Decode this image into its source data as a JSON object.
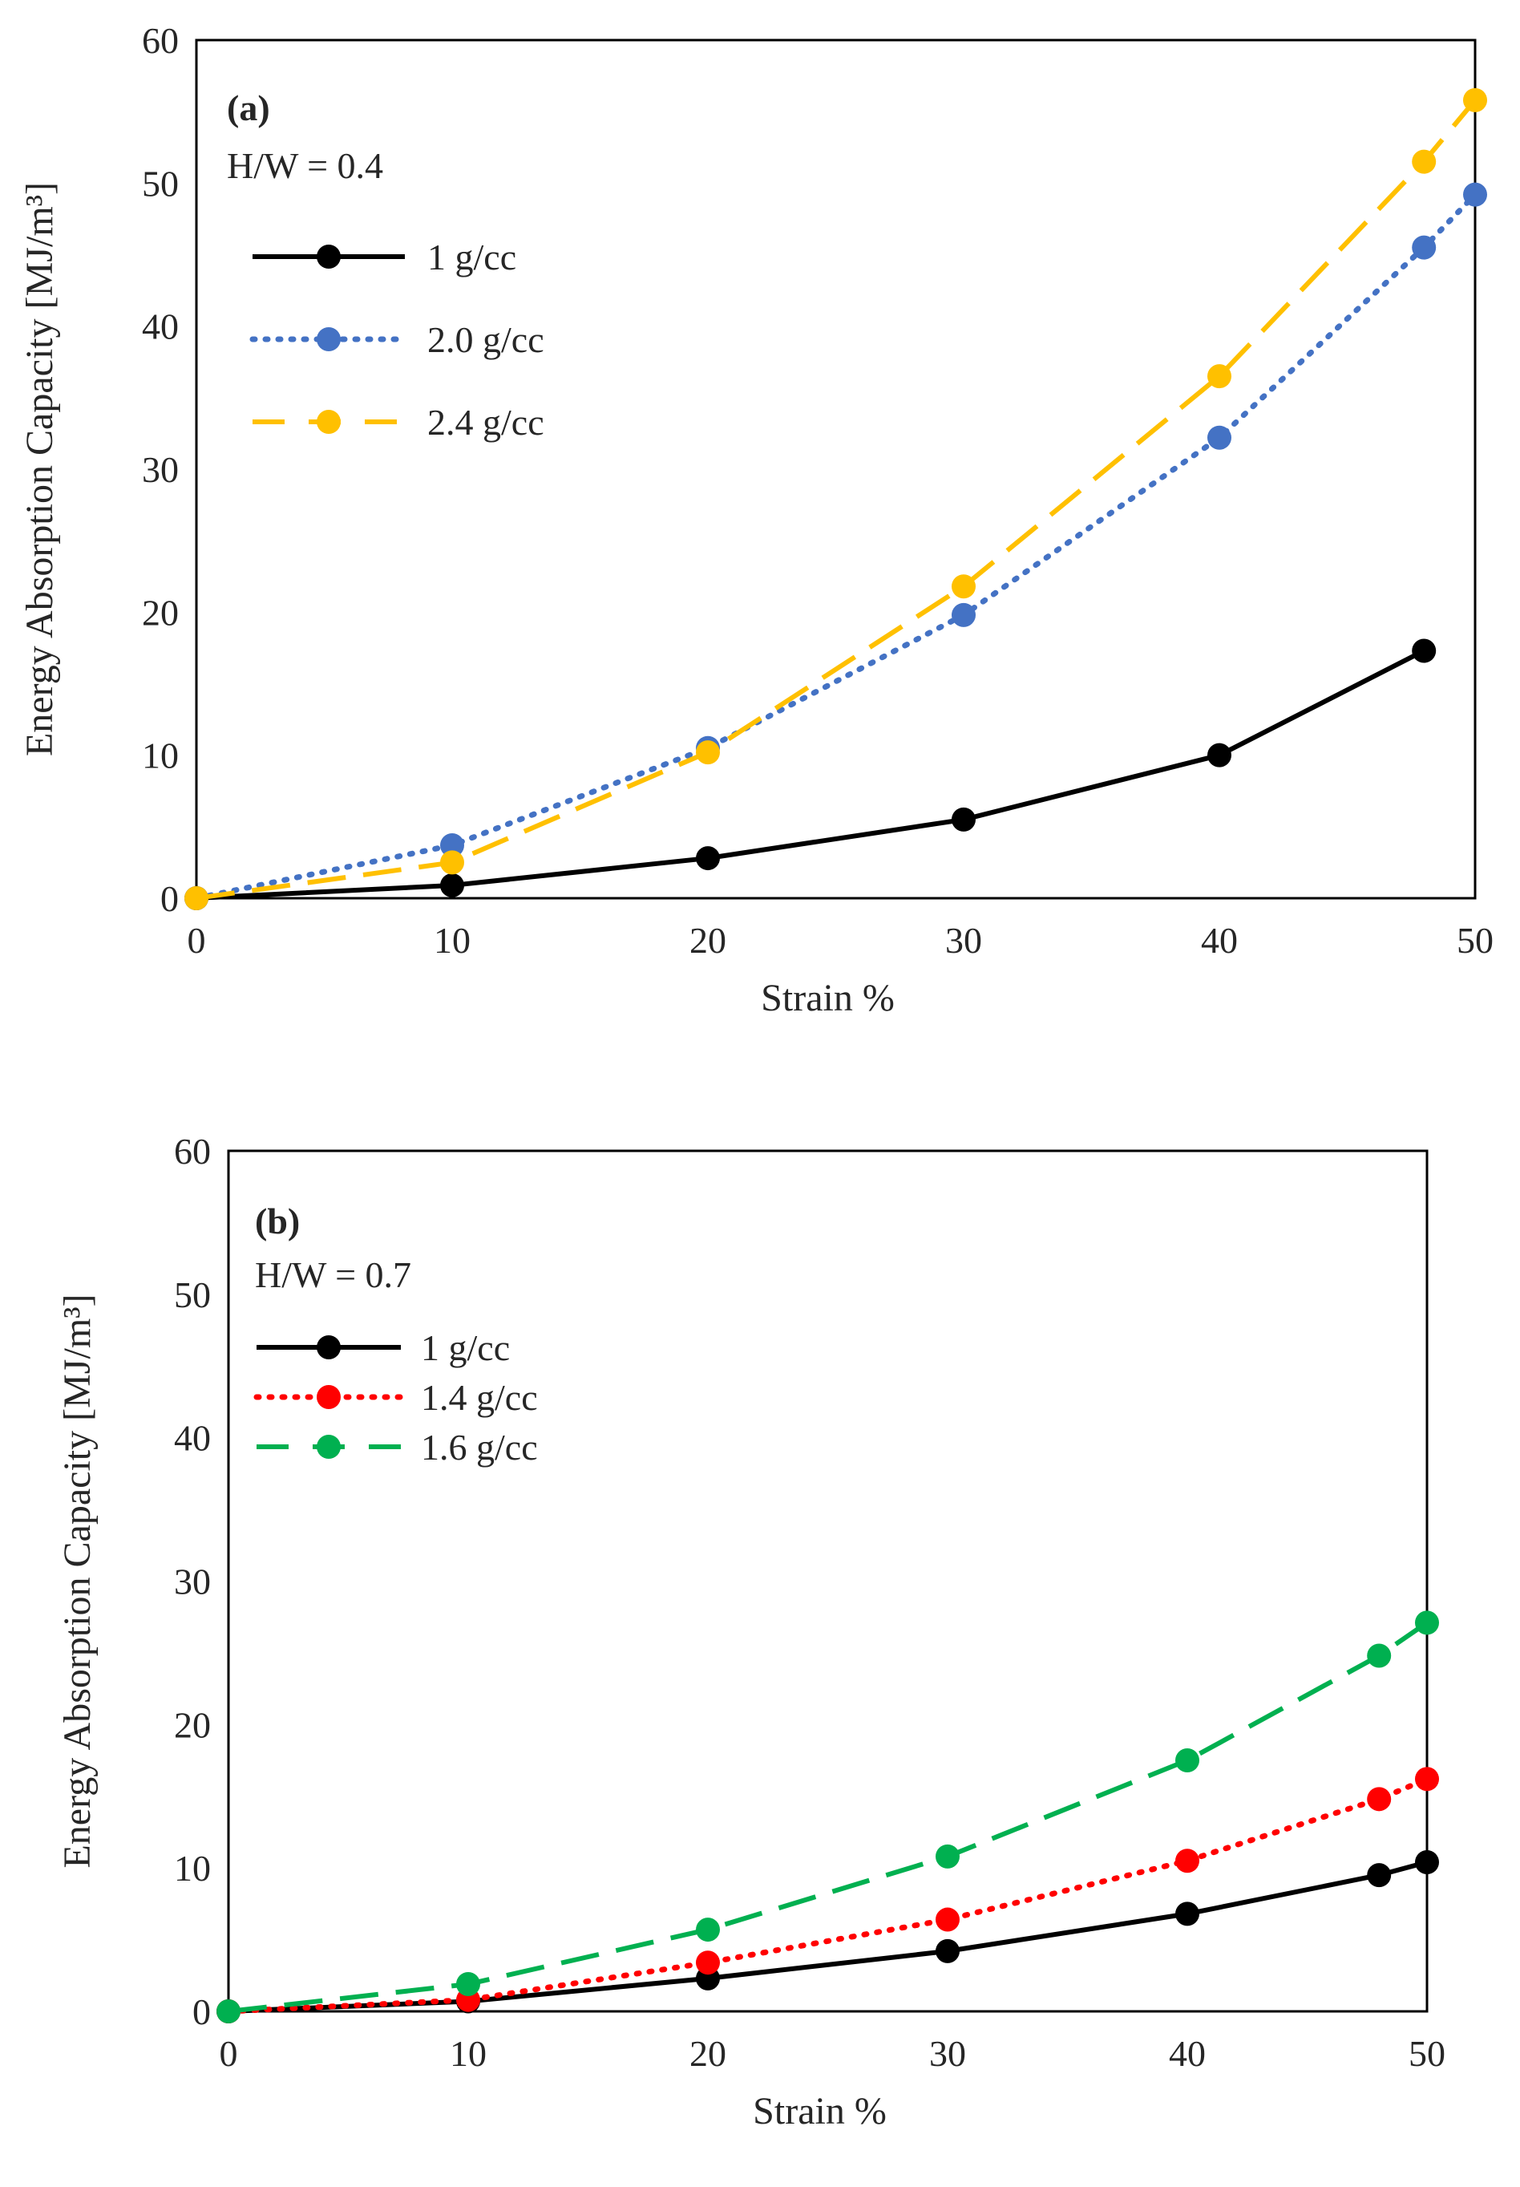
{
  "chart_data": [
    {
      "type": "line",
      "panel_label": "(a)",
      "subtitle": "H/W = 0.4",
      "xlabel": "Strain %",
      "ylabel": "Energy Absorption Capacity [MJ/m³]",
      "xlim": [
        0,
        50
      ],
      "ylim": [
        0,
        60
      ],
      "xticks": [
        0,
        10,
        20,
        30,
        40,
        50
      ],
      "yticks": [
        0,
        10,
        20,
        30,
        40,
        50,
        60
      ],
      "grid": false,
      "legend_position": "top-left",
      "series": [
        {
          "name": "1 g/cc",
          "color": "#000000",
          "style": "solid",
          "x": [
            0,
            10,
            20,
            30,
            40,
            48
          ],
          "values": [
            0,
            0.9,
            2.8,
            5.5,
            10,
            17.3
          ]
        },
        {
          "name": "2.0 g/cc",
          "color": "#4472C4",
          "style": "dotted",
          "x": [
            0,
            10,
            20,
            30,
            40,
            48,
            50
          ],
          "values": [
            0,
            3.7,
            10.5,
            19.8,
            32.2,
            45.5,
            49.2
          ]
        },
        {
          "name": "2.4 g/cc",
          "color": "#FFC000",
          "style": "dashed",
          "x": [
            0,
            10,
            20,
            30,
            40,
            48,
            50
          ],
          "values": [
            0,
            2.5,
            10.2,
            21.8,
            36.5,
            51.5,
            55.8
          ]
        }
      ]
    },
    {
      "type": "line",
      "panel_label": "(b)",
      "subtitle": "H/W = 0.7",
      "xlabel": "Strain %",
      "ylabel": "Energy Absorption Capacity [MJ/m³]",
      "xlim": [
        0,
        50
      ],
      "ylim": [
        0,
        60
      ],
      "xticks": [
        0,
        10,
        20,
        30,
        40,
        50
      ],
      "yticks": [
        0,
        10,
        20,
        30,
        40,
        50,
        60
      ],
      "grid": false,
      "legend_position": "top-left",
      "series": [
        {
          "name": "1 g/cc",
          "color": "#000000",
          "style": "solid",
          "x": [
            0,
            10,
            20,
            30,
            40,
            48,
            50
          ],
          "values": [
            0,
            0.7,
            2.3,
            4.2,
            6.8,
            9.5,
            10.4
          ]
        },
        {
          "name": "1.4 g/cc",
          "color": "#FF0000",
          "style": "dotted",
          "x": [
            0,
            10,
            20,
            30,
            40,
            48,
            50
          ],
          "values": [
            0,
            0.8,
            3.4,
            6.4,
            10.5,
            14.8,
            16.2
          ]
        },
        {
          "name": "1.6 g/cc",
          "color": "#00B050",
          "style": "dashed",
          "x": [
            0,
            10,
            20,
            30,
            40,
            48,
            50
          ],
          "values": [
            0,
            1.9,
            5.7,
            10.8,
            17.5,
            24.8,
            27.1
          ]
        }
      ]
    }
  ]
}
